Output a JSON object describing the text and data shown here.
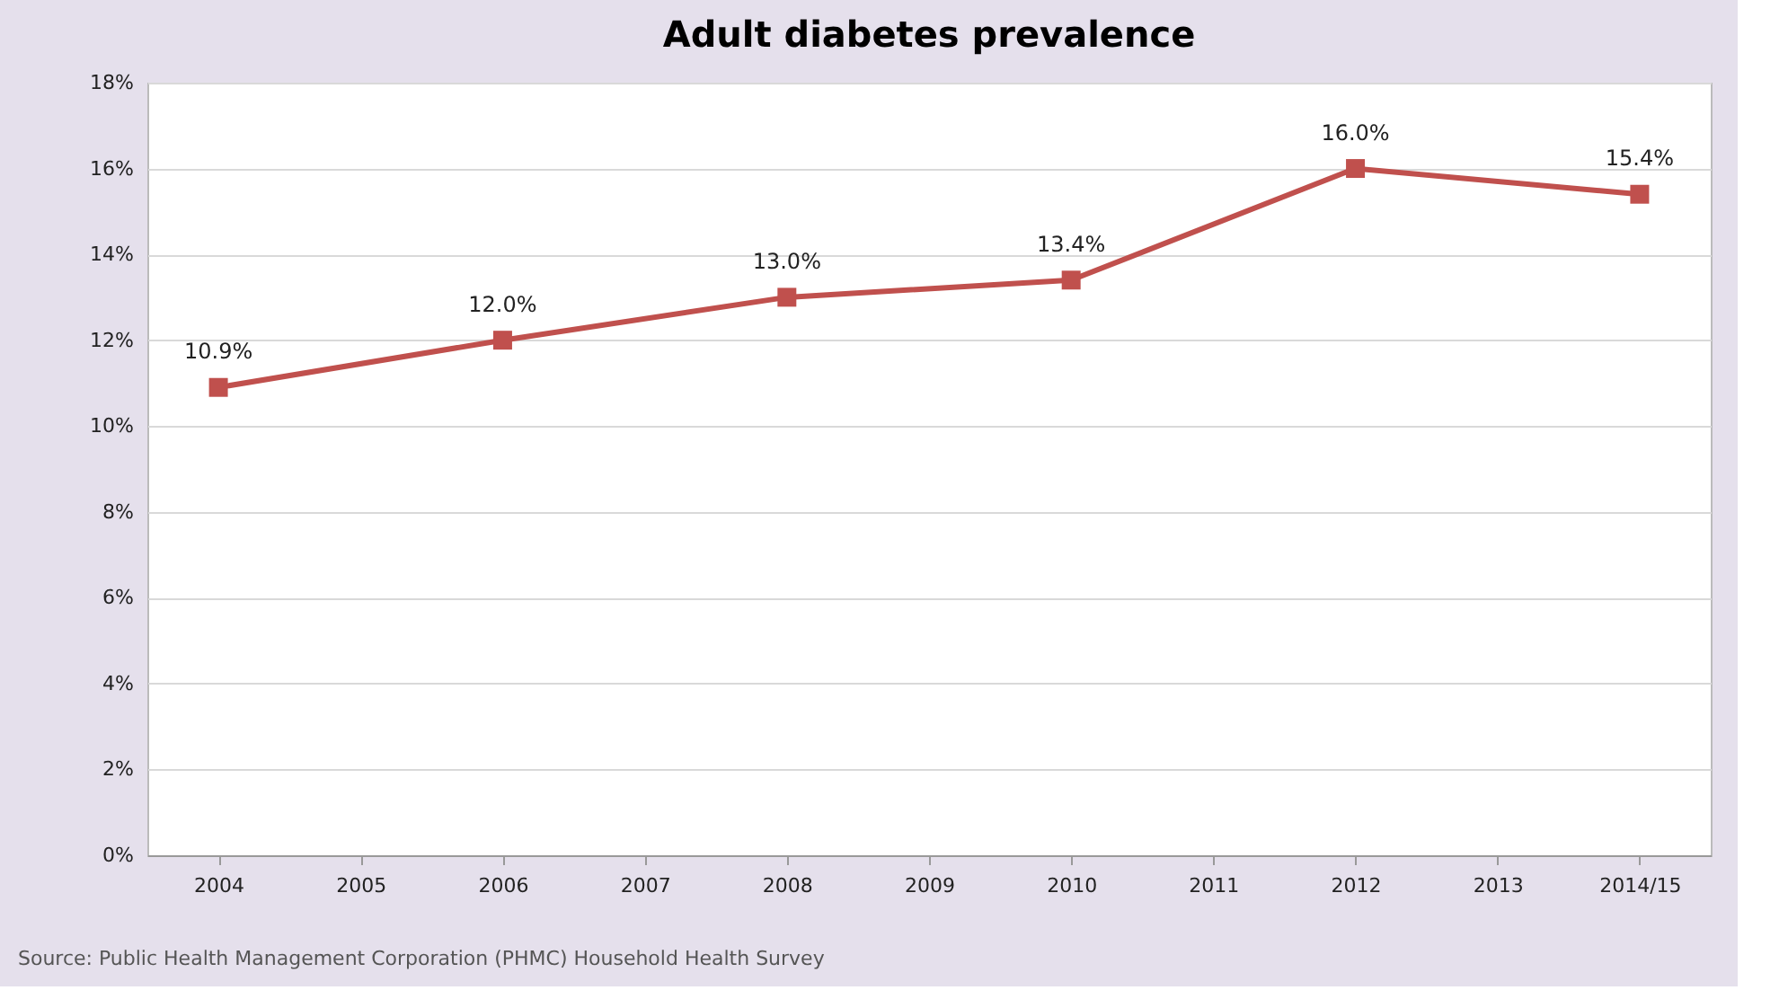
{
  "chart_data": {
    "type": "line",
    "title": "Adult diabetes prevalence",
    "categories": [
      "2004",
      "2005",
      "2006",
      "2007",
      "2008",
      "2009",
      "2010",
      "2011",
      "2012",
      "2013",
      "2014/15"
    ],
    "series": [
      {
        "color": "#c0504d",
        "values": [
          10.9,
          null,
          12.0,
          null,
          13.0,
          null,
          13.4,
          null,
          16.0,
          null,
          15.4
        ],
        "value_labels": [
          "10.9%",
          null,
          "12.0%",
          null,
          "13.0%",
          null,
          "13.4%",
          null,
          "16.0%",
          null,
          "15.4%"
        ]
      }
    ],
    "ylim": [
      0,
      18
    ],
    "yticks": [
      {
        "value": 0,
        "label": "0%"
      },
      {
        "value": 2,
        "label": "2%"
      },
      {
        "value": 4,
        "label": "4%"
      },
      {
        "value": 6,
        "label": "6%"
      },
      {
        "value": 8,
        "label": "8%"
      },
      {
        "value": 10,
        "label": "10%"
      },
      {
        "value": 12,
        "label": "12%"
      },
      {
        "value": 14,
        "label": "14%"
      },
      {
        "value": 16,
        "label": "16%"
      },
      {
        "value": 18,
        "label": "18%"
      }
    ],
    "grid": "y",
    "marker": "square",
    "line_style": "solid",
    "annotations": [
      "Source: Public Health Management Corporation (PHMC) Household Health Survey"
    ]
  }
}
